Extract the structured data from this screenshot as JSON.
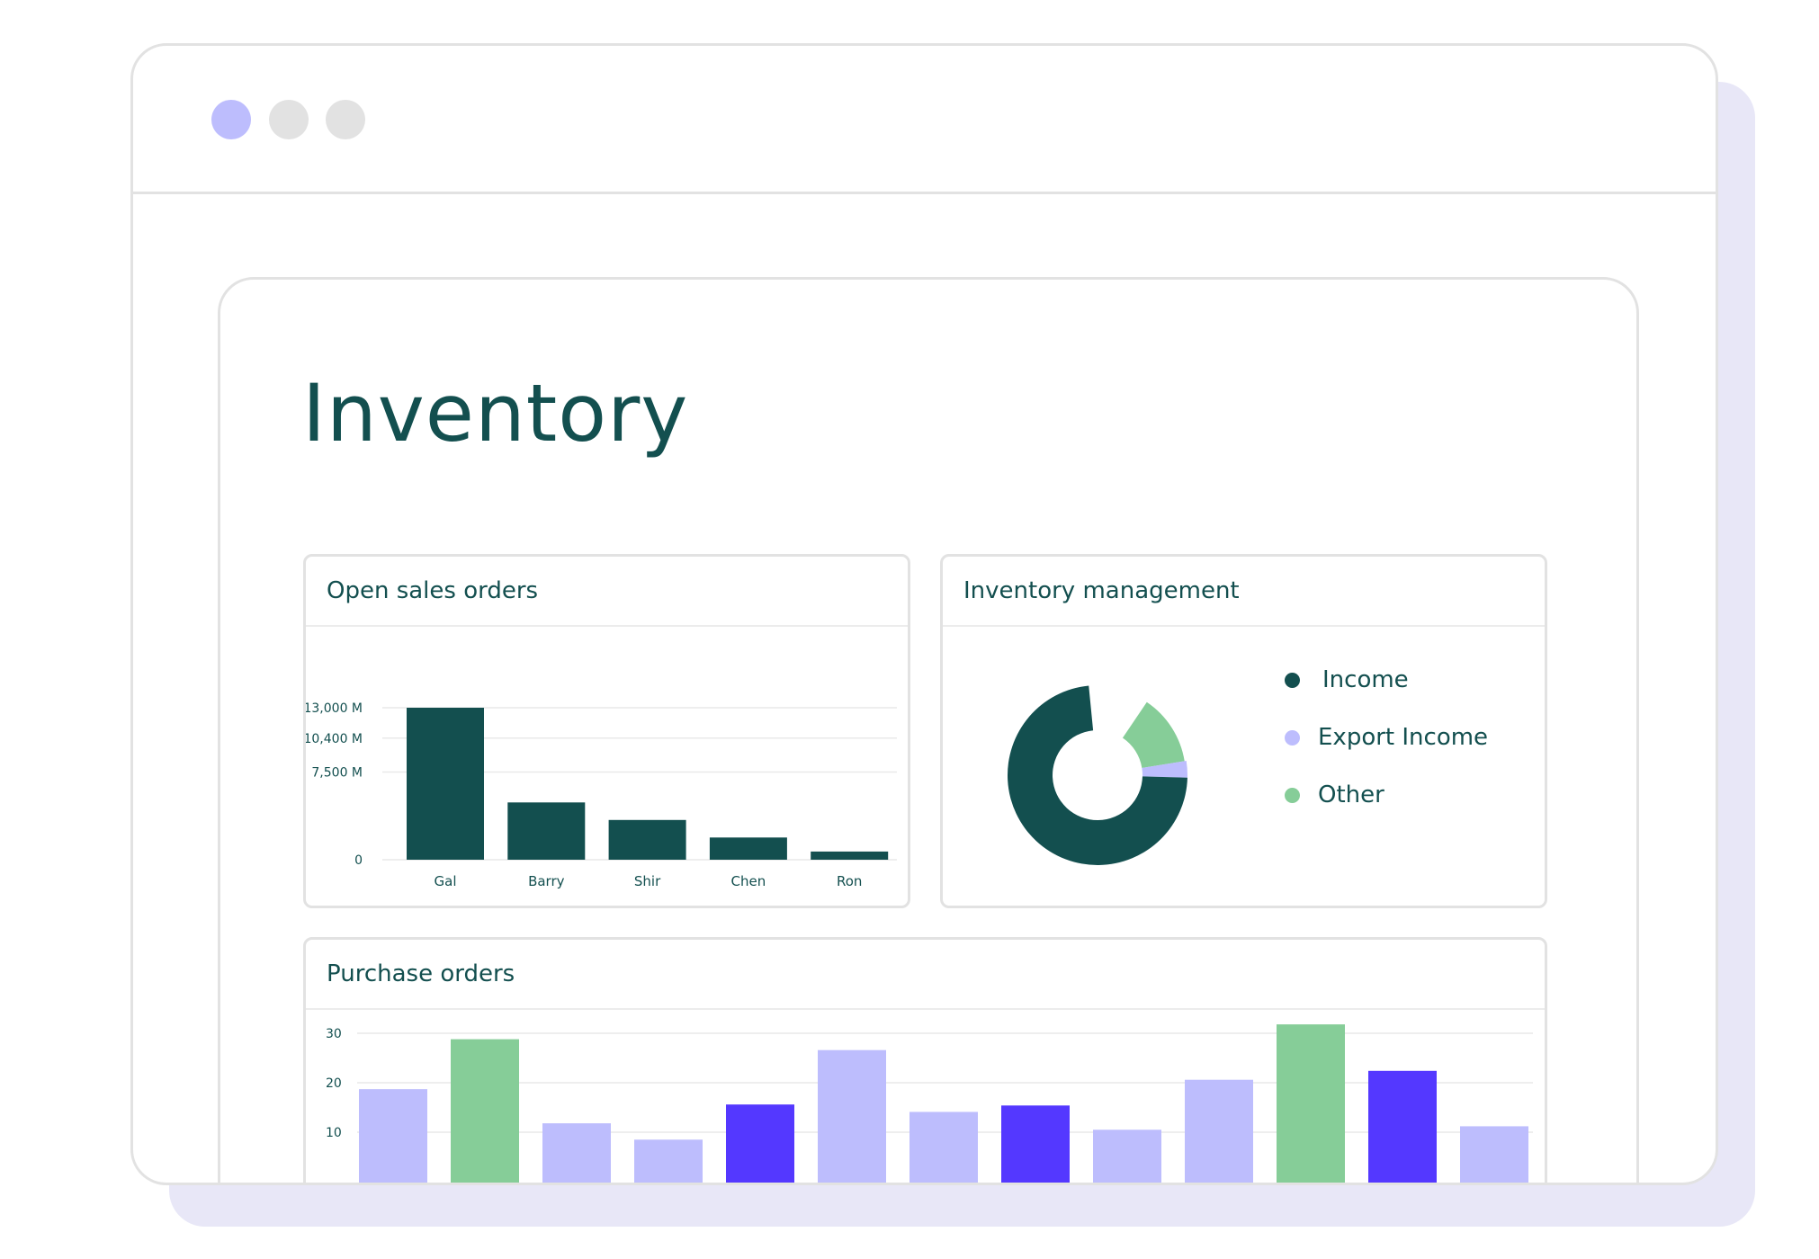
{
  "window": {
    "dots": [
      {
        "name": "dot-1",
        "color": "#bdbdfd"
      },
      {
        "name": "dot-2",
        "color": "#e2e2e2"
      },
      {
        "name": "dot-3",
        "color": "#e2e2e2"
      }
    ]
  },
  "page": {
    "title": "Inventory"
  },
  "panels": {
    "sales": {
      "title": "Open sales orders"
    },
    "inventory": {
      "title": "Inventory management"
    },
    "purchase": {
      "title": "Purchase orders"
    }
  },
  "colors": {
    "teal": "#134f4f",
    "lavender": "#bdbdfd",
    "green": "#86cd98",
    "blue": "#5438ff",
    "grid": "#e9e9e9"
  },
  "chart_data": [
    {
      "id": "open-sales-orders",
      "type": "bar",
      "title": "Open sales orders",
      "categories": [
        "Gal",
        "Barry",
        "Shir",
        "Chen",
        "Ron"
      ],
      "values": [
        13000,
        4900,
        3400,
        1900,
        700
      ],
      "y_ticks": [
        {
          "value": 0,
          "label": "0"
        },
        {
          "value": 7500,
          "label": "7,500 M"
        },
        {
          "value": 10400,
          "label": "10,400 M"
        },
        {
          "value": 13000,
          "label": "13,000 M"
        }
      ],
      "ylim": [
        0,
        13000
      ],
      "grid": true,
      "color": "#134f4f"
    },
    {
      "id": "inventory-management",
      "type": "pie",
      "title": "Inventory management",
      "donut": true,
      "slices": [
        {
          "label": "Income",
          "value": 73,
          "color": "#134f4f"
        },
        {
          "label": "Export Income",
          "value": 3,
          "color": "#bdbdfd"
        },
        {
          "label": "Other",
          "value": 13,
          "color": "#86cd98"
        }
      ],
      "legend": "right"
    },
    {
      "id": "purchase-orders",
      "type": "bar",
      "title": "Purchase orders",
      "values": [
        {
          "value": 18.7,
          "color": "#bdbdfd"
        },
        {
          "value": 28.8,
          "color": "#86cd98"
        },
        {
          "value": 11.8,
          "color": "#bdbdfd"
        },
        {
          "value": 8.5,
          "color": "#bdbdfd"
        },
        {
          "value": 15.6,
          "color": "#5438ff"
        },
        {
          "value": 26.6,
          "color": "#bdbdfd"
        },
        {
          "value": 14.1,
          "color": "#bdbdfd"
        },
        {
          "value": 15.4,
          "color": "#5438ff"
        },
        {
          "value": 10.5,
          "color": "#bdbdfd"
        },
        {
          "value": 20.6,
          "color": "#bdbdfd"
        },
        {
          "value": 31.8,
          "color": "#86cd98"
        },
        {
          "value": 22.4,
          "color": "#5438ff"
        },
        {
          "value": 11.2,
          "color": "#bdbdfd"
        }
      ],
      "y_ticks": [
        {
          "value": 10,
          "label": "10"
        },
        {
          "value": 20,
          "label": "20"
        },
        {
          "value": 30,
          "label": "30"
        }
      ],
      "grid": true
    }
  ]
}
